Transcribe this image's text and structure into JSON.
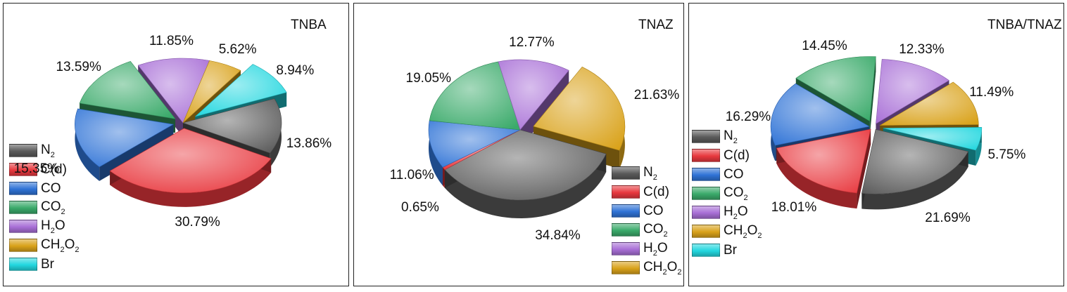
{
  "colors": {
    "N2": "#5a5a5a",
    "C(d)": "#e8383e",
    "CO": "#2f73d6",
    "CO2": "#3aaa6a",
    "H2O": "#a86fd6",
    "CH2O2": "#d9a21a",
    "Br": "#22d7df"
  },
  "chart_data": [
    {
      "type": "pie",
      "title": "TNBA",
      "labels": [
        "N2",
        "C(d)",
        "CO",
        "CO2",
        "H2O",
        "CH2O2",
        "Br"
      ],
      "values": [
        13.86,
        30.79,
        15.35,
        13.59,
        11.85,
        5.62,
        8.94
      ],
      "value_labels": [
        "13.86%",
        "30.79%",
        "15.35%",
        "13.59%",
        "11.85%",
        "5.62%",
        "8.94%"
      ],
      "legend": [
        {
          "key": "N2",
          "base": "N",
          "sub": "2",
          "tail": ""
        },
        {
          "key": "C(d)",
          "base": "C(d)",
          "sub": "",
          "tail": ""
        },
        {
          "key": "CO",
          "base": "CO",
          "sub": "",
          "tail": ""
        },
        {
          "key": "CO2",
          "base": "CO",
          "sub": "2",
          "tail": ""
        },
        {
          "key": "H2O",
          "base": "H",
          "sub": "2",
          "tail": "O"
        },
        {
          "key": "CH2O2",
          "base": "CH",
          "sub": "2",
          "tail": "O",
          "sub2": "2"
        },
        {
          "key": "Br",
          "base": "Br",
          "sub": "",
          "tail": ""
        }
      ],
      "legend_position": "bottom-left"
    },
    {
      "type": "pie",
      "title": "TNAZ",
      "labels": [
        "N2",
        "C(d)",
        "CO",
        "CO2",
        "H2O",
        "CH2O2"
      ],
      "values": [
        34.84,
        0.65,
        11.06,
        19.05,
        12.77,
        21.63
      ],
      "value_labels": [
        "34.84%",
        "0.65%",
        "11.06%",
        "19.05%",
        "12.77%",
        "21.63%"
      ],
      "legend": [
        {
          "key": "N2",
          "base": "N",
          "sub": "2",
          "tail": ""
        },
        {
          "key": "C(d)",
          "base": "C(d)",
          "sub": "",
          "tail": ""
        },
        {
          "key": "CO",
          "base": "CO",
          "sub": "",
          "tail": ""
        },
        {
          "key": "CO2",
          "base": "CO",
          "sub": "2",
          "tail": ""
        },
        {
          "key": "H2O",
          "base": "H",
          "sub": "2",
          "tail": "O"
        },
        {
          "key": "CH2O2",
          "base": "CH",
          "sub": "2",
          "tail": "O",
          "sub2": "2"
        }
      ],
      "legend_position": "bottom-right"
    },
    {
      "type": "pie",
      "title": "TNBA/TNAZ",
      "labels": [
        "N2",
        "C(d)",
        "CO",
        "CO2",
        "H2O",
        "CH2O2",
        "Br"
      ],
      "values": [
        21.69,
        18.01,
        16.29,
        14.45,
        12.33,
        11.49,
        5.75
      ],
      "value_labels": [
        "21.69%",
        "18.01%",
        "16.29%",
        "14.45%",
        "12.33%",
        "11.49%",
        "5.75%"
      ],
      "legend": [
        {
          "key": "N2",
          "base": "N",
          "sub": "2",
          "tail": ""
        },
        {
          "key": "C(d)",
          "base": "C(d)",
          "sub": "",
          "tail": ""
        },
        {
          "key": "CO",
          "base": "CO",
          "sub": "",
          "tail": ""
        },
        {
          "key": "CO2",
          "base": "CO",
          "sub": "2",
          "tail": ""
        },
        {
          "key": "H2O",
          "base": "H",
          "sub": "2",
          "tail": "O"
        },
        {
          "key": "CH2O2",
          "base": "CH",
          "sub": "2",
          "tail": "O",
          "sub2": "2"
        },
        {
          "key": "Br",
          "base": "Br",
          "sub": "",
          "tail": ""
        }
      ],
      "legend_position": "left"
    }
  ]
}
